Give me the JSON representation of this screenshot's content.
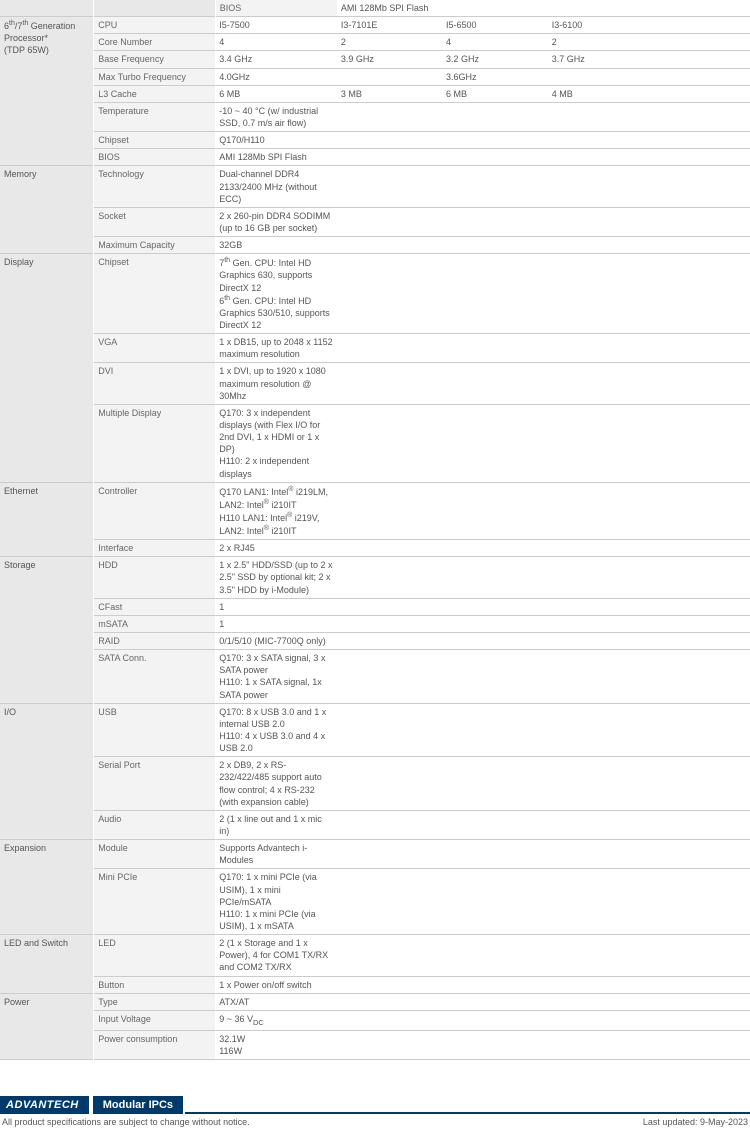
{
  "rows": [
    {
      "cat": "",
      "catRowspan": 0,
      "sub": "BIOS",
      "vals": [
        "AMI 128Mb SPI Flash",
        "",
        "",
        ""
      ],
      "sectionTop": false
    },
    {
      "cat": "6<sup>th</sup>/7<sup>th</sup> Generation Processor*<br>(TDP 65W)",
      "catRowspan": 8,
      "sub": "CPU",
      "vals": [
        "I5-7500",
        "I3-7101E",
        "I5-6500",
        "I3-6100"
      ],
      "sectionTop": true
    },
    {
      "sub": "Core Number",
      "vals": [
        "4",
        "2",
        "4",
        "2"
      ]
    },
    {
      "sub": "Base Frequency",
      "vals": [
        "3.4 GHz",
        "3.9 GHz",
        "3.2 GHz",
        "3.7 GHz"
      ]
    },
    {
      "sub": "Max Turbo Frequency",
      "vals": [
        "4.0GHz",
        "",
        "3.6GHz",
        ""
      ]
    },
    {
      "sub": "L3 Cache",
      "vals": [
        "6 MB",
        "3 MB",
        "6 MB",
        "4 MB"
      ]
    },
    {
      "sub": "Temperature",
      "vals": [
        "-10 ~ 40 °C (w/ industrial SSD, 0.7 m/s air flow)",
        "",
        "",
        ""
      ]
    },
    {
      "sub": "Chipset",
      "vals": [
        "Q170/H110",
        "",
        "",
        ""
      ]
    },
    {
      "sub": "BIOS",
      "vals": [
        "AMI 128Mb SPI Flash",
        "",
        "",
        ""
      ]
    },
    {
      "cat": "Memory",
      "catRowspan": 3,
      "sub": "Technology",
      "vals": [
        "Dual-channel DDR4 2133/2400 MHz (without ECC)",
        "",
        "",
        ""
      ],
      "sectionTop": true
    },
    {
      "sub": "Socket",
      "vals": [
        "2 x 260-pin DDR4 SODIMM (up to 16 GB per socket)",
        "",
        "",
        ""
      ]
    },
    {
      "sub": "Maximum Capacity",
      "vals": [
        "32GB",
        "",
        "",
        ""
      ]
    },
    {
      "cat": "Display",
      "catRowspan": 4,
      "sub": "Chipset",
      "vals": [
        "7<sup>th</sup> Gen. CPU: Intel HD Graphics 630, supports DirectX 12<br>6<sup>th</sup> Gen. CPU: Intel HD Graphics 530/510, supports DirectX 12",
        "",
        "",
        ""
      ],
      "sectionTop": true
    },
    {
      "sub": "VGA",
      "vals": [
        "1 x DB15, up to 2048 x 1152 maximum resolution",
        "",
        "",
        ""
      ]
    },
    {
      "sub": "DVI",
      "vals": [
        "1 x DVI, up to 1920 x 1080 maximum resolution @ 30Mhz",
        "",
        "",
        ""
      ]
    },
    {
      "sub": "Multiple Display",
      "vals": [
        "Q170: 3 x independent displays (with Flex I/O for 2nd DVI, 1 x HDMI or 1 x DP)<br>H110: 2 x independent displays",
        "",
        "",
        ""
      ]
    },
    {
      "cat": "Ethernet",
      "catRowspan": 2,
      "sub": "Controller",
      "vals": [
        "Q170 LAN1: Intel<sup>®</sup> i219LM, LAN2: Intel<sup>®</sup> i210IT<br>H110 LAN1: Intel<sup>®</sup> i219V, LAN2: Intel<sup>®</sup> i210IT",
        "",
        "",
        ""
      ],
      "sectionTop": true
    },
    {
      "sub": "Interface",
      "vals": [
        "2 x RJ45",
        "",
        "",
        ""
      ]
    },
    {
      "cat": "Storage",
      "catRowspan": 5,
      "sub": "HDD",
      "vals": [
        "1 x 2.5\" HDD/SSD (up to 2 x 2.5\" SSD by optional kit; 2 x 3.5\" HDD by i-Module)",
        "",
        "",
        ""
      ],
      "sectionTop": true
    },
    {
      "sub": "CFast",
      "vals": [
        "1",
        "",
        "",
        ""
      ]
    },
    {
      "sub": "mSATA",
      "vals": [
        "1",
        "",
        "",
        ""
      ]
    },
    {
      "sub": "RAID",
      "vals": [
        "0/1/5/10 (MIC-7700Q only)",
        "",
        "",
        ""
      ]
    },
    {
      "sub": "SATA Conn.",
      "vals": [
        "Q170: 3 x SATA signal, 3 x SATA power<br>H110: 1 x SATA signal, 1x SATA power",
        "",
        "",
        ""
      ]
    },
    {
      "cat": "I/O",
      "catRowspan": 3,
      "sub": "USB",
      "vals": [
        "Q170: 8 x USB 3.0 and 1 x internal USB 2.0<br>H110: 4 x USB 3.0 and 4 x USB 2.0",
        "",
        "",
        ""
      ],
      "sectionTop": true
    },
    {
      "sub": "Serial Port",
      "vals": [
        "2 x DB9, 2 x RS-232/422/485 support auto flow control; 4 x RS-232 (with expansion cable)",
        "",
        "",
        ""
      ]
    },
    {
      "sub": "Audio",
      "vals": [
        "2 (1 x line out and 1 x mic in)",
        "",
        "",
        ""
      ]
    },
    {
      "cat": "Expansion",
      "catRowspan": 2,
      "sub": "Module",
      "vals": [
        "Supports Advantech i-Modules",
        "",
        "",
        ""
      ],
      "sectionTop": true
    },
    {
      "sub": "Mini PCIe",
      "vals": [
        "Q170: 1 x mini PCIe (via USIM), 1 x mini PCIe/mSATA<br>H110: 1 x mini PCIe (via USIM), 1 x mSATA",
        "",
        "",
        ""
      ]
    },
    {
      "cat": "LED and Switch",
      "catRowspan": 2,
      "sub": "LED",
      "vals": [
        "2 (1 x Storage and 1 x Power), 4 for COM1 TX/RX and COM2 TX/RX",
        "",
        "",
        ""
      ],
      "sectionTop": true
    },
    {
      "sub": "Button",
      "vals": [
        "1 x Power on/off switch",
        "",
        "",
        ""
      ]
    },
    {
      "cat": "Power",
      "catRowspan": 3,
      "sub": "Type",
      "vals": [
        "ATX/AT",
        "",
        "",
        ""
      ],
      "sectionTop": true
    },
    {
      "sub": "Input Voltage",
      "vals": [
        "9 ~ 36 V<sub>DC</sub>",
        "",
        "",
        ""
      ]
    },
    {
      "sub": "Power consumption",
      "vals": [
        "32.1W<br>116W",
        "",
        "",
        ""
      ]
    }
  ],
  "footer": {
    "brand": "ADVANTECH",
    "category": "Modular IPCs",
    "disclaimer": "All product specifications are subject to change without notice.",
    "updated": "Last updated: 9-May-2023"
  }
}
